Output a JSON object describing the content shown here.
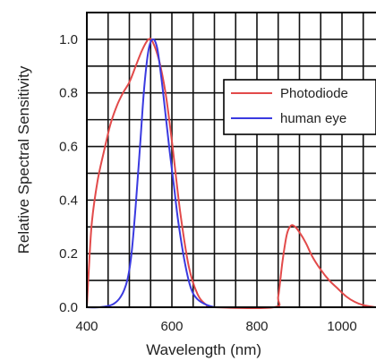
{
  "chart_data": {
    "type": "line",
    "title": "",
    "xlabel": "Wavelength (nm)",
    "ylabel": "Relative Spectral Sensitivity",
    "xlim": [
      400,
      1080
    ],
    "ylim": [
      0,
      1.1
    ],
    "x_ticks": [
      400,
      600,
      800,
      1000
    ],
    "y_ticks": [
      0.0,
      0.2,
      0.4,
      0.6,
      0.8,
      1.0
    ],
    "x_tick_labels": [
      "400",
      "600",
      "800",
      "1000"
    ],
    "y_tick_labels": [
      "0.0",
      "0.2",
      "0.4",
      "0.6",
      "0.8",
      "1.0"
    ],
    "grid": true,
    "legend_position": "top-right",
    "series": [
      {
        "name": "Photodiode",
        "color": "#e24a4a",
        "points": [
          [
            400,
            0.0
          ],
          [
            405,
            0.15
          ],
          [
            412,
            0.32
          ],
          [
            425,
            0.47
          ],
          [
            440,
            0.58
          ],
          [
            455,
            0.68
          ],
          [
            470,
            0.75
          ],
          [
            485,
            0.8
          ],
          [
            500,
            0.84
          ],
          [
            515,
            0.9
          ],
          [
            530,
            0.96
          ],
          [
            545,
            1.0
          ],
          [
            555,
            0.99
          ],
          [
            570,
            0.92
          ],
          [
            585,
            0.8
          ],
          [
            600,
            0.62
          ],
          [
            620,
            0.35
          ],
          [
            640,
            0.15
          ],
          [
            660,
            0.05
          ],
          [
            680,
            0.01
          ],
          [
            700,
            0.0
          ],
          [
            840,
            0.0
          ],
          [
            850,
            0.04
          ],
          [
            860,
            0.17
          ],
          [
            870,
            0.27
          ],
          [
            880,
            0.305
          ],
          [
            890,
            0.3
          ],
          [
            900,
            0.28
          ],
          [
            915,
            0.24
          ],
          [
            930,
            0.19
          ],
          [
            950,
            0.14
          ],
          [
            970,
            0.1
          ],
          [
            990,
            0.07
          ],
          [
            1010,
            0.04
          ],
          [
            1030,
            0.02
          ],
          [
            1050,
            0.008
          ],
          [
            1080,
            0.0
          ]
        ]
      },
      {
        "name": "human eye",
        "color": "#3a3ae0",
        "points": [
          [
            400,
            0.0
          ],
          [
            430,
            0.0
          ],
          [
            460,
            0.01
          ],
          [
            480,
            0.04
          ],
          [
            495,
            0.1
          ],
          [
            505,
            0.2
          ],
          [
            515,
            0.38
          ],
          [
            525,
            0.6
          ],
          [
            535,
            0.82
          ],
          [
            545,
            0.96
          ],
          [
            555,
            1.0
          ],
          [
            565,
            0.97
          ],
          [
            575,
            0.86
          ],
          [
            585,
            0.72
          ],
          [
            595,
            0.58
          ],
          [
            605,
            0.45
          ],
          [
            615,
            0.32
          ],
          [
            630,
            0.17
          ],
          [
            645,
            0.07
          ],
          [
            660,
            0.03
          ],
          [
            680,
            0.01
          ],
          [
            700,
            0.0
          ]
        ]
      }
    ]
  }
}
